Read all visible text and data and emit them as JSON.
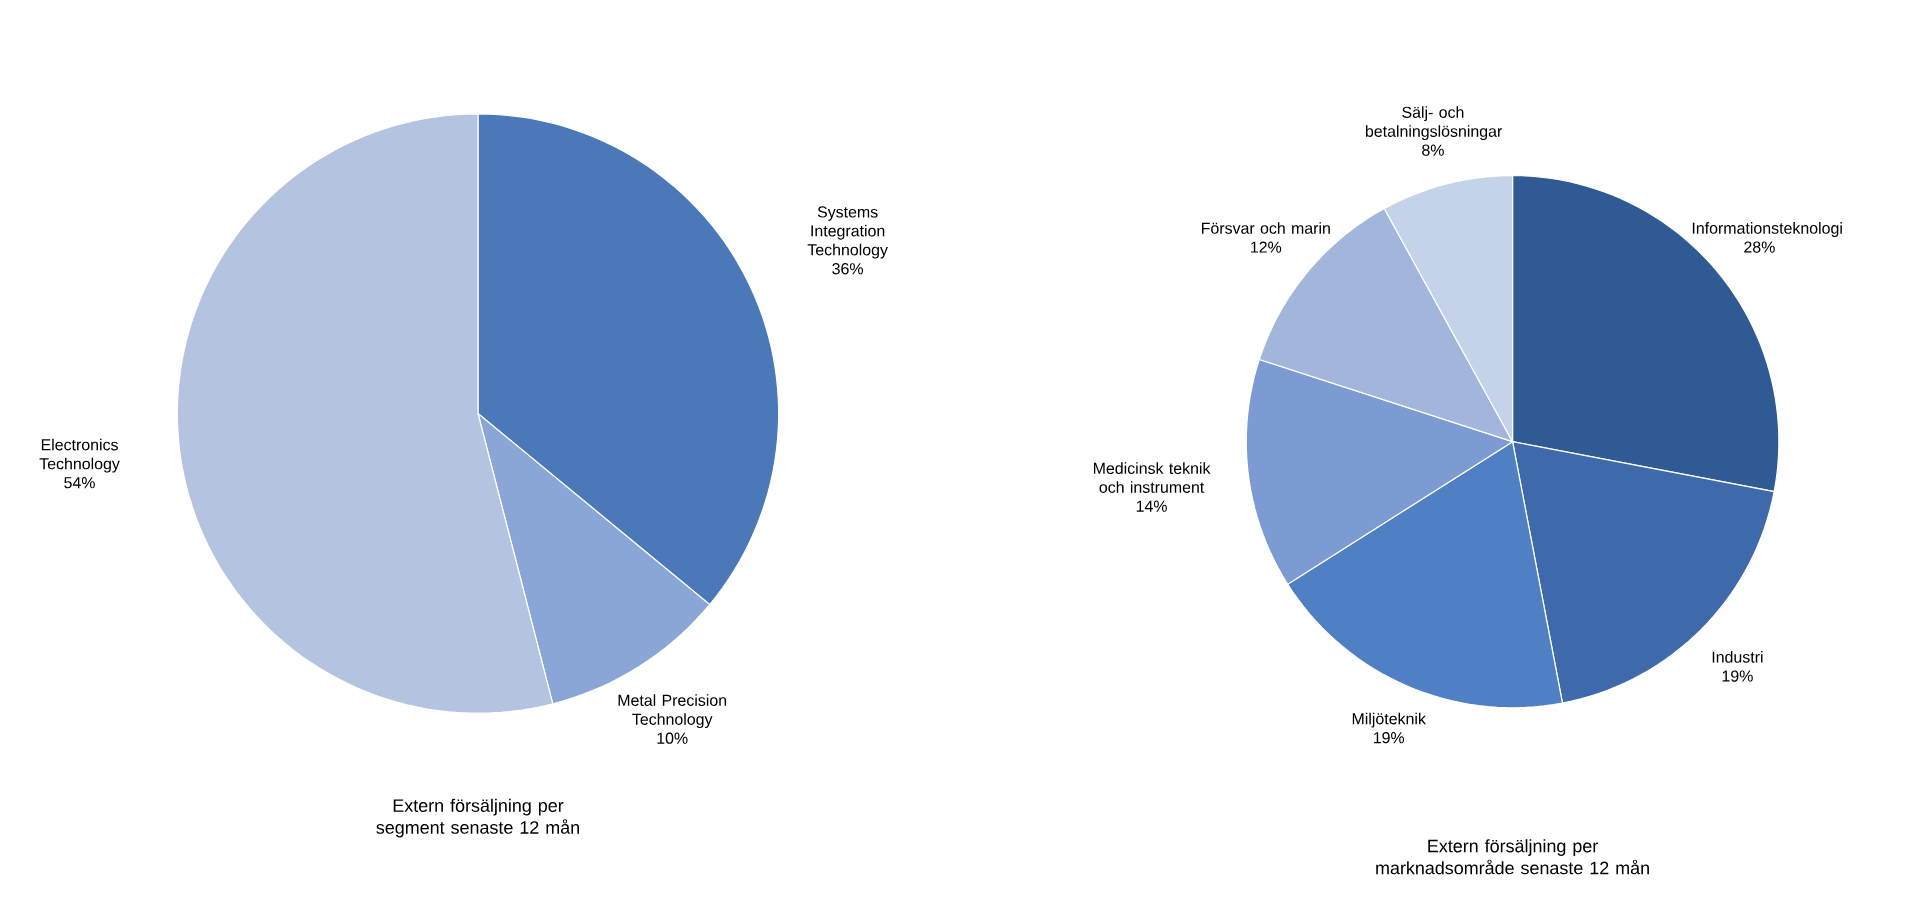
{
  "chart_data": [
    {
      "type": "pie",
      "title": "Extern försäljning per segment senaste 12 mån",
      "categories": [
        "Systems Integration Technology",
        "Metal Precision Technology",
        "Electronics Technology"
      ],
      "values": [
        36,
        10,
        54
      ],
      "value_labels": [
        "36%",
        "10%",
        "54%"
      ],
      "colors": [
        "#4a78b8",
        "#8aa6d6",
        "#b3c3e0"
      ]
    },
    {
      "type": "pie",
      "title": "Extern försäljning per marknadsområde senaste 12 mån",
      "categories": [
        "Informationsteknologi",
        "Industri",
        "Miljöteknik",
        "Medicinsk teknik och instrument",
        "Försvar och marin",
        "Sälj- och betalningslösningar"
      ],
      "values": [
        28,
        19,
        19,
        14,
        12,
        8
      ],
      "value_labels": [
        "28%",
        "19%",
        "19%",
        "14%",
        "12%",
        "8%"
      ],
      "colors": [
        "#2f5a94",
        "#3e6aac",
        "#4f80c4",
        "#7c9bd2",
        "#a2b6dc",
        "#c5d3ea"
      ]
    }
  ]
}
